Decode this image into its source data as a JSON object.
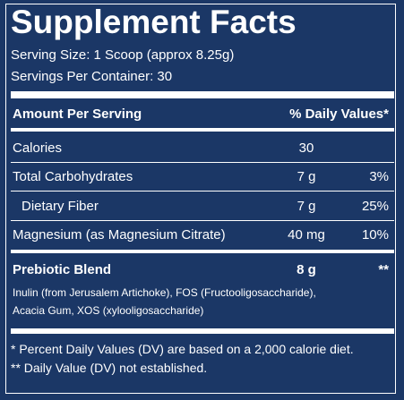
{
  "title": "Supplement Facts",
  "serving_size": "Serving Size: 1 Scoop (approx 8.25g)",
  "servings_per_container": "Servings Per Container: 30",
  "table": {
    "header": [
      "Amount Per Serving",
      "% Daily Values*"
    ],
    "rows": [
      {
        "name": "Calories",
        "amount": "30"
      },
      {
        "name": "Total Carbohydrates",
        "amount": "7 g",
        "dv": "3%"
      },
      {
        "name": "Dietary Fiber",
        "amount": "7 g",
        "dv": "25%"
      },
      {
        "name": "Magnesium (as Magnesium Citrate)",
        "amount": "40 mg",
        "dv": "10%"
      }
    ],
    "blend": {
      "name": "Prebiotic Blend",
      "amount": "8 g",
      "dv": "**",
      "description": [
        "Inulin (from Jerusalem Artichoke), FOS (Fructooligosaccharide),",
        "Acacia Gum, XOS (xylooligosaccharide)"
      ]
    }
  },
  "footnotes": [
    "* Percent Daily Values (DV) are based on a 2,000 calorie diet.",
    "** Daily Value (DV) not established."
  ]
}
